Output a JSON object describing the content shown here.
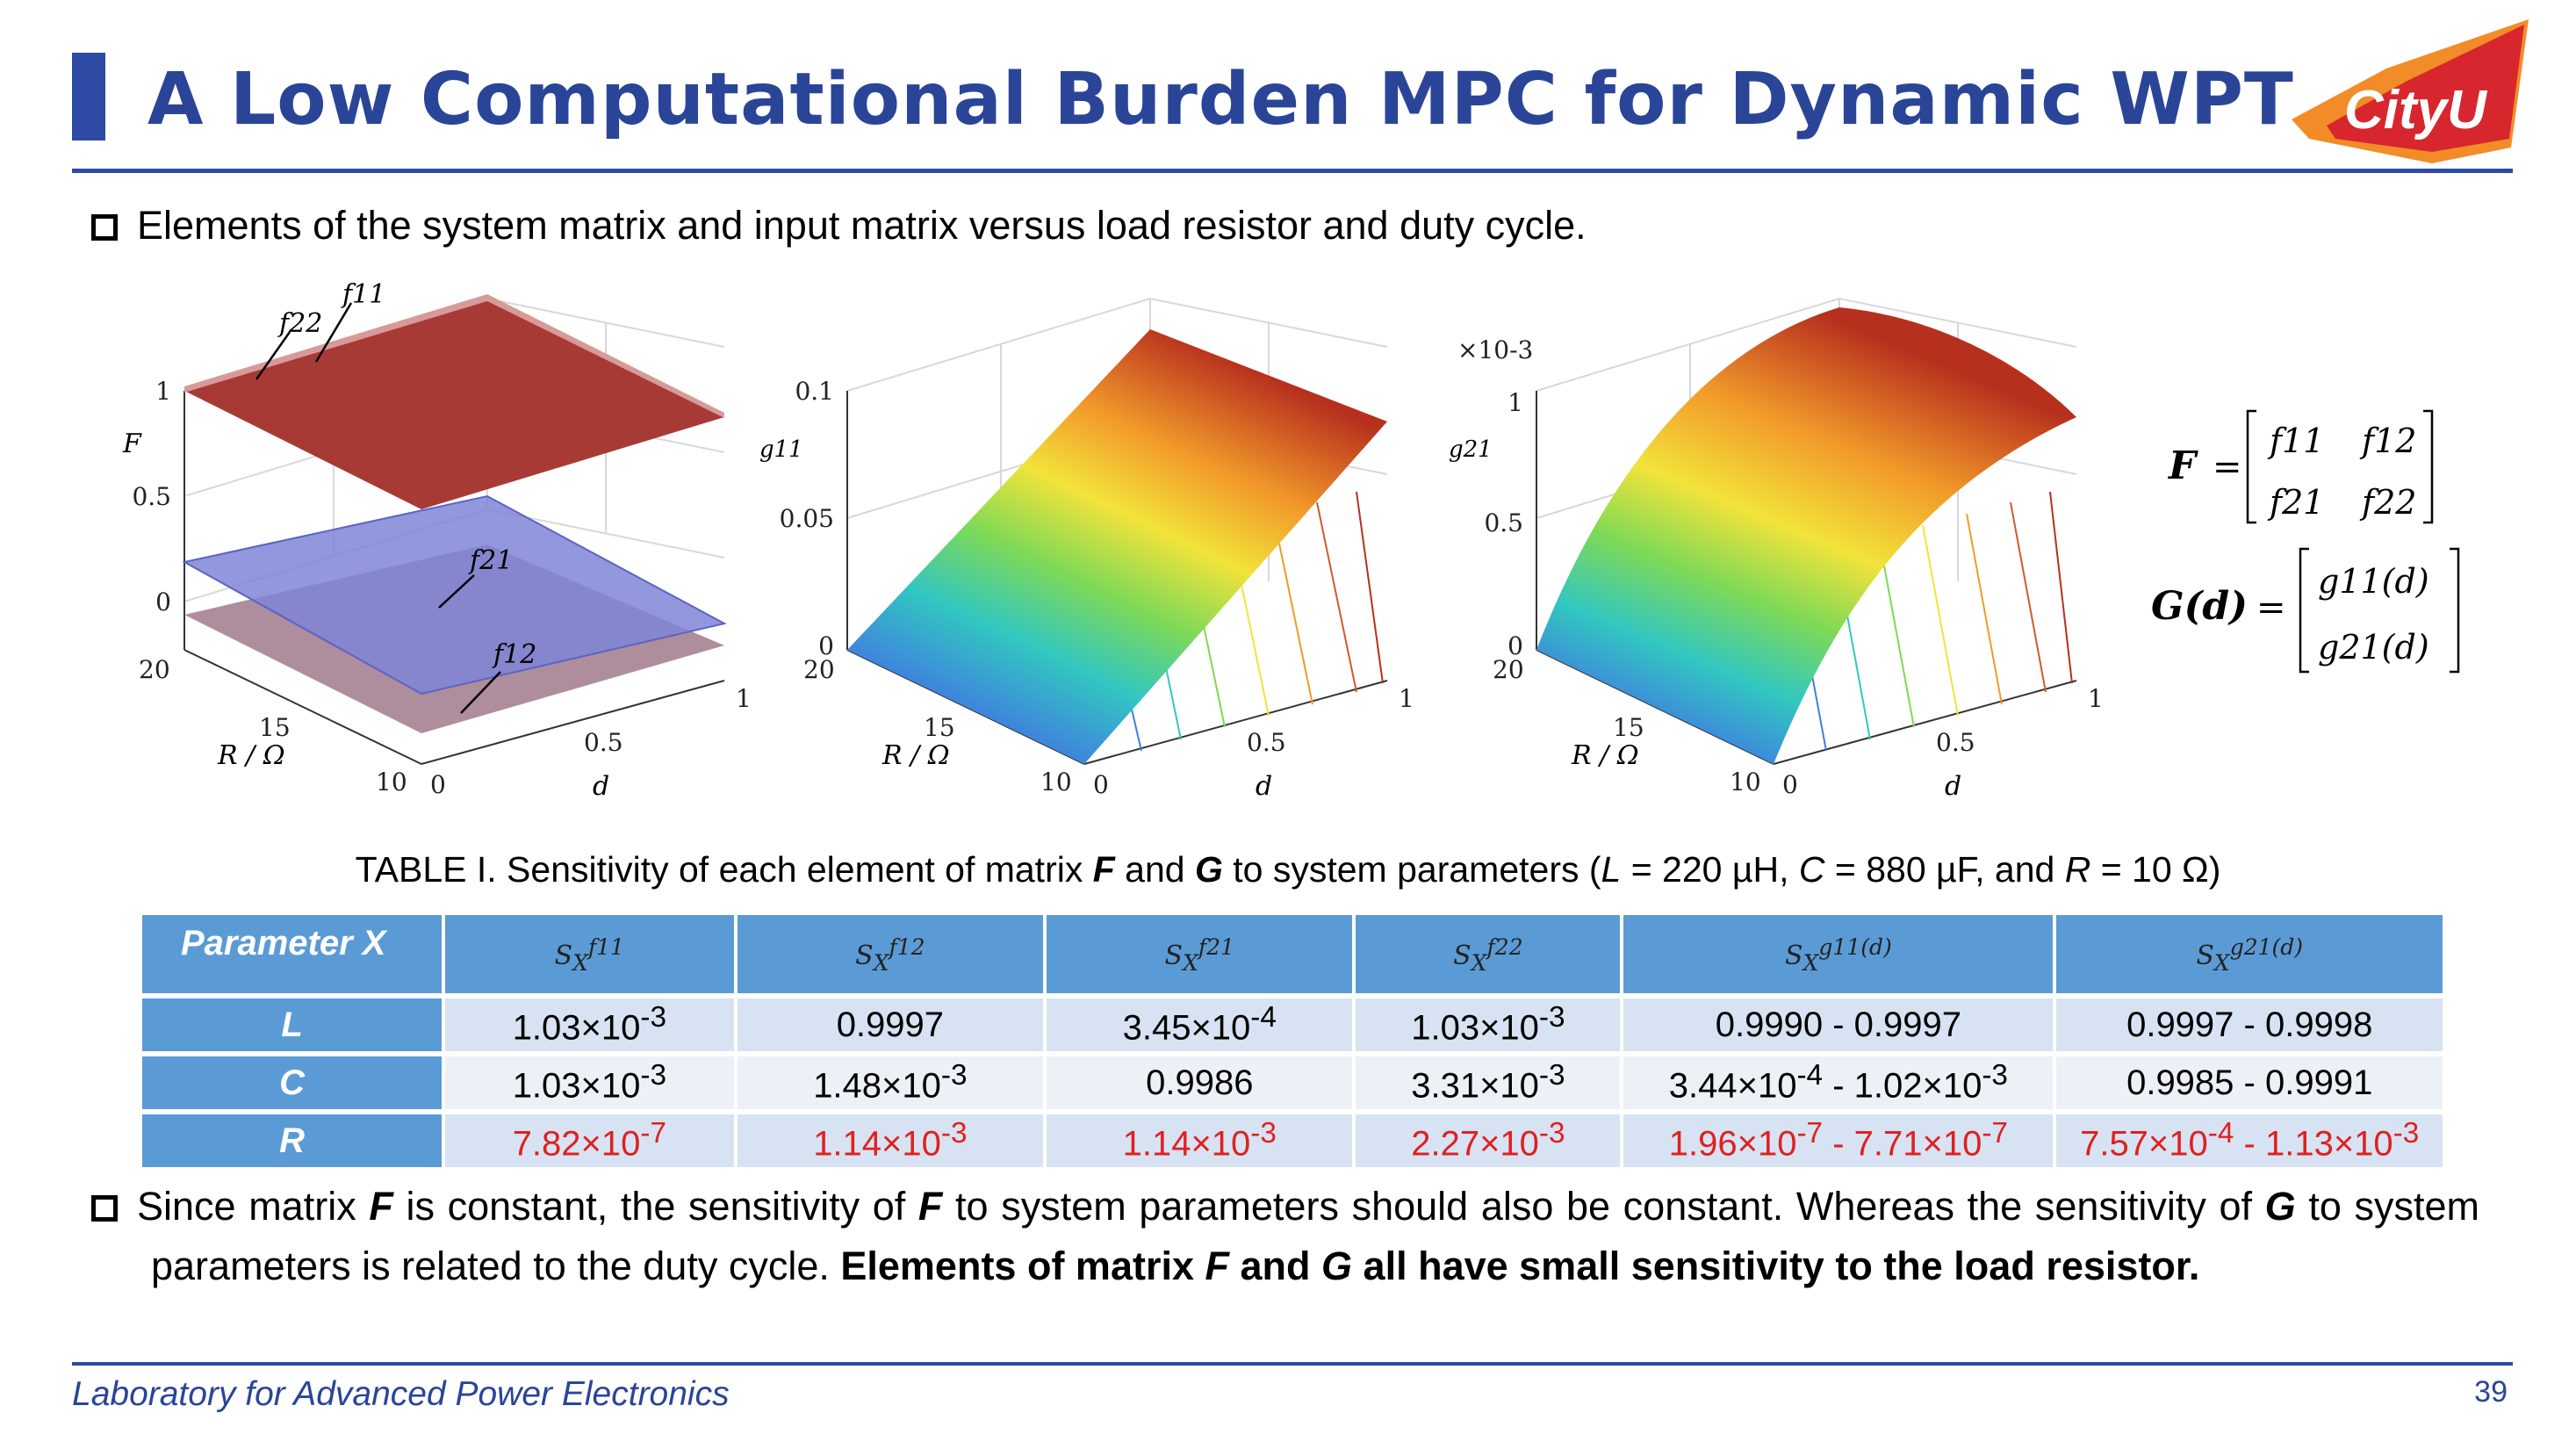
{
  "slide": {
    "title": "A Low Computational Burden MPC for Dynamic WPT",
    "logo_text": "CityU",
    "bullet1": "Elements of the system matrix and input matrix versus load resistor and duty cycle.",
    "para_1": "Since matrix ",
    "para_F1": "F",
    "para_2": " is constant, the sensitivity of ",
    "para_F2": "F",
    "para_3": " to system parameters should also be constant. Whereas the sensitivity of ",
    "para_G1": "G",
    "para_4": " to system parameters is related to the duty cycle. ",
    "para_bold_1": "Elements of matrix ",
    "para_bold_F": "F",
    "para_bold_and": " and ",
    "para_bold_G": "G",
    "para_bold_2": " all have small sensitivity to the load resistor.",
    "footer": "Laboratory for Advanced Power Electronics",
    "page_number": "39"
  },
  "caption": {
    "prefix": "TABLE I. Sensitivity of each element of matrix ",
    "F": "F",
    "and": " and ",
    "G": "G",
    "mid": " to system parameters (",
    "L": "L",
    "Lval": " = 220 µH, ",
    "C": "C",
    "Cval": " = 880 µF, and ",
    "R": "R",
    "Rval": " = 10 Ω)"
  },
  "table": {
    "header_param": "Parameter X",
    "col_symbols": [
      "f11",
      "f12",
      "f21",
      "f22",
      "g11(d)",
      "g21(d)"
    ],
    "rows": [
      {
        "param": "L",
        "cells": [
          [
            "1.03×10",
            "-3",
            ""
          ],
          [
            "0.9997",
            "",
            ""
          ],
          [
            "3.45×10",
            "-4",
            ""
          ],
          [
            "1.03×10",
            "-3",
            ""
          ],
          [
            "0.9990 - 0.9997",
            "",
            ""
          ],
          [
            "0.9997 - 0.9998",
            "",
            ""
          ]
        ]
      },
      {
        "param": "C",
        "cells": [
          [
            "1.03×10",
            "-3",
            ""
          ],
          [
            "1.48×10",
            "-3",
            ""
          ],
          [
            "0.9986",
            "",
            ""
          ],
          [
            "3.31×10",
            "-3",
            ""
          ],
          [
            "3.44×10",
            "-4",
            " - 1.02×10",
            "-3"
          ],
          [
            "0.9985 - 0.9991",
            "",
            ""
          ]
        ]
      },
      {
        "param": "R",
        "cells": [
          [
            "7.82×10",
            "-7",
            ""
          ],
          [
            "1.14×10",
            "-3",
            ""
          ],
          [
            "1.14×10",
            "-3",
            ""
          ],
          [
            "2.27×10",
            "-3",
            ""
          ],
          [
            "1.96×10",
            "-7",
            " - 7.71×10",
            "-7"
          ],
          [
            "7.57×10",
            "-4",
            " - 1.13×10",
            "-3"
          ]
        ]
      }
    ]
  },
  "plots": [
    {
      "ylabel": "F",
      "zticks": [
        "1",
        "0.5",
        "0"
      ],
      "rticks": [
        "20",
        "15",
        "10"
      ],
      "dticks": [
        "0",
        "0.5",
        "1"
      ],
      "rlabel": "R / Ω",
      "dlabel": "d",
      "annotations": [
        "f11",
        "f22",
        "f21",
        "f12"
      ]
    },
    {
      "ylabel": "g11",
      "zticks": [
        "0.1",
        "0.05",
        "0"
      ],
      "rticks": [
        "20",
        "15",
        "10"
      ],
      "dticks": [
        "0",
        "0.5",
        "1"
      ],
      "rlabel": "R / Ω",
      "dlabel": "d"
    },
    {
      "ylabel": "g21",
      "multiplier": "×10-3",
      "zticks": [
        "1",
        "0.5",
        "0"
      ],
      "rticks": [
        "20",
        "15",
        "10"
      ],
      "dticks": [
        "0",
        "0.5",
        "1"
      ],
      "rlabel": "R / Ω",
      "dlabel": "d"
    }
  ],
  "equations": {
    "F_lhs": "F",
    "F_entries": [
      "f11",
      "f12",
      "f21",
      "f22"
    ],
    "G_lhs": "G(d)",
    "G_entries": [
      "g11(d)",
      "g21(d)"
    ]
  },
  "colors": {
    "title_blue": "#2a4598",
    "rule_blue": "#2d4aa5",
    "header_blue": "#5b9bd5",
    "row_light": "#d7e3f2",
    "row_lighter": "#ecf1f8",
    "red_text": "#e02020",
    "logo_red": "#d7262e",
    "logo_orange": "#f28c28"
  }
}
